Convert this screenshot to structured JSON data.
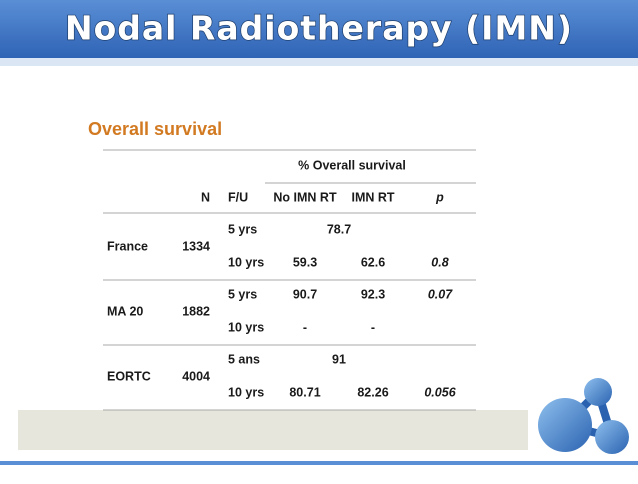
{
  "header": {
    "title": "Nodal Radiotherapy (IMN)"
  },
  "table": {
    "heading": "Overall survival",
    "group_header": "% Overall survival",
    "columns": [
      "N",
      "F/U",
      "No IMN RT",
      "IMN RT",
      "p"
    ],
    "groups": [
      {
        "name": "France",
        "n": "1334",
        "rows": [
          {
            "fu": "5 yrs",
            "both": 78.7
          },
          {
            "fu": "10 yrs",
            "no_imn": 59.3,
            "imn": 62.6,
            "p": 0.8
          }
        ]
      },
      {
        "name": "MA 20",
        "n": "1882",
        "rows": [
          {
            "fu": "5 yrs",
            "no_imn": 90.7,
            "imn": 92.3,
            "p": 0.07
          },
          {
            "fu": "10 yrs",
            "no_imn": "-",
            "imn": "-"
          }
        ]
      },
      {
        "name": "EORTC",
        "n": "4004",
        "rows": [
          {
            "fu": "5 ans",
            "both": 91
          },
          {
            "fu": "10 yrs",
            "no_imn": 80.71,
            "imn": 82.26,
            "p": 0.056
          }
        ]
      }
    ]
  }
}
